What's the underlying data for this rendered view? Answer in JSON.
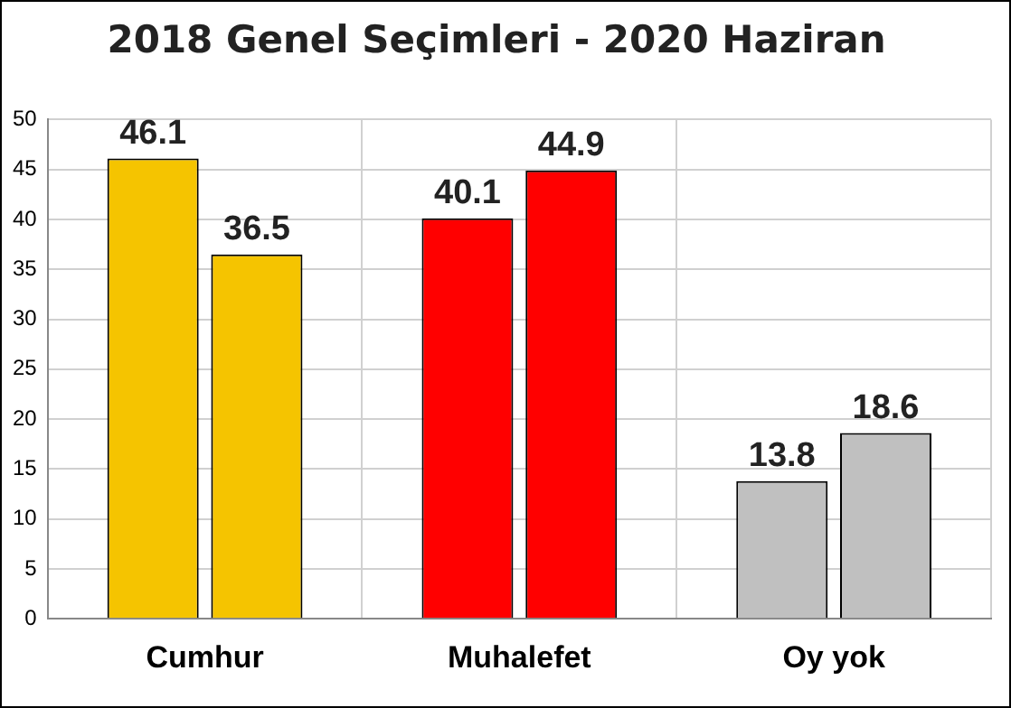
{
  "chart_data": {
    "type": "bar",
    "title": "2018 Genel Seçimleri - 2020 Haziran",
    "categories": [
      "Cumhur",
      "Muhalefet",
      "Oy yok"
    ],
    "series": [
      {
        "colors": [
          "#f5c400",
          "#ff0000",
          "#c0c0c0"
        ],
        "values": [
          46.1,
          40.1,
          13.8
        ]
      },
      {
        "colors": [
          "#f5c400",
          "#ff0000",
          "#c0c0c0"
        ],
        "values": [
          36.5,
          44.9,
          18.6
        ]
      }
    ],
    "ylim": [
      0,
      50
    ],
    "yticks": [
      0,
      5,
      10,
      15,
      20,
      25,
      30,
      35,
      40,
      45,
      50
    ],
    "grid": true,
    "data_labels": true
  }
}
